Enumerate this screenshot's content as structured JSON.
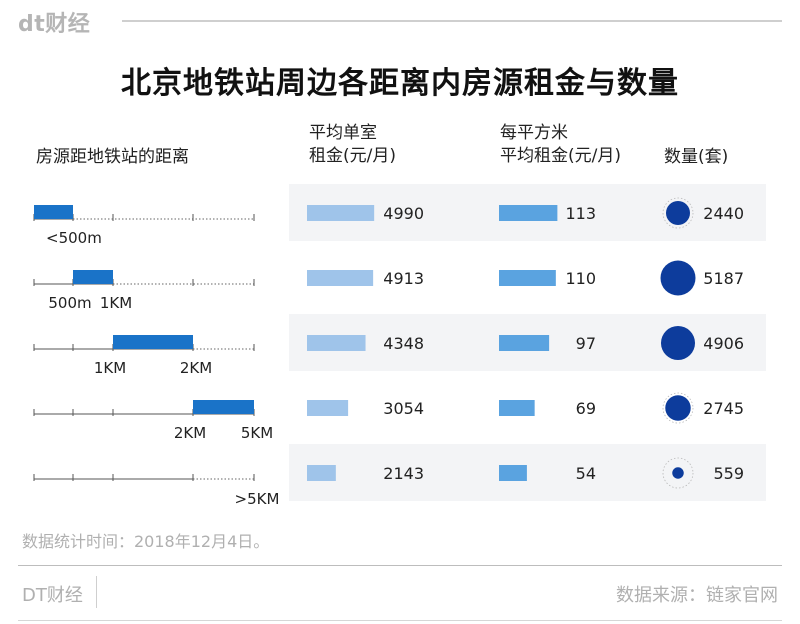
{
  "brand": {
    "logo": "dt财经",
    "footer_left": "DT财经"
  },
  "title": "北京地铁站周边各距离内房源租金与数量",
  "headers": {
    "distance": "房源距地铁站的距离",
    "avg_rent_line1": "平均单室",
    "avg_rent_line2": "租金(元/月)",
    "sqm_rent_line1": "每平方米",
    "sqm_rent_line2": "平均租金(元/月)",
    "count": "数量(套)"
  },
  "note": "数据统计时间：2018年12月4日。",
  "source": "数据来源：链家官网",
  "colors": {
    "distance_bar": "#1a73c8",
    "rent_bar": "#9fc4ea",
    "sqm_bar": "#5aa3e0",
    "circle": "#0d3c9c",
    "band": "#f3f4f6"
  },
  "chart_data": {
    "type": "table",
    "rows": [
      {
        "range_start": 0,
        "range_end": 0.5,
        "labels": [
          "<500m"
        ],
        "avg_rent": 4990,
        "rent_per_sqm": 113,
        "count": 2440
      },
      {
        "range_start": 0.5,
        "range_end": 1,
        "labels": [
          "500m",
          "1KM"
        ],
        "avg_rent": 4913,
        "rent_per_sqm": 110,
        "count": 5187
      },
      {
        "range_start": 1,
        "range_end": 2,
        "labels": [
          "1KM",
          "2KM"
        ],
        "avg_rent": 4348,
        "rent_per_sqm": 97,
        "count": 4906
      },
      {
        "range_start": 2,
        "range_end": 5,
        "labels": [
          "2KM",
          "5KM"
        ],
        "avg_rent": 3054,
        "rent_per_sqm": 69,
        "count": 2745
      },
      {
        "range_start": 5,
        "range_end": null,
        "labels": [
          ">5KM"
        ],
        "avg_rent": 2143,
        "rent_per_sqm": 54,
        "count": 559
      }
    ]
  }
}
